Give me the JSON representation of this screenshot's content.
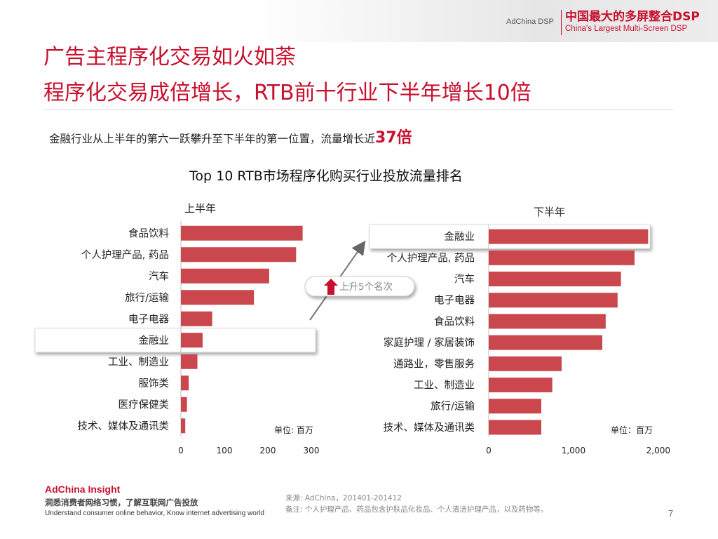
{
  "header": {
    "brand_small": "AdChina DSP",
    "brand_cn": "中国最大的多屏整合DSP",
    "brand_en": "China's Largest Multi-Screen DSP"
  },
  "title": {
    "line1": "广告主程序化交易如火如荼",
    "line2": "程序化交易成倍增长，RTB前十行业下半年增长10倍"
  },
  "subtitle": {
    "text": "金融行业从上半年的第六一跃攀升至下半年的第一位置，流量增长近",
    "highlight": "37倍"
  },
  "chart_data": {
    "title": "Top 10 RTB市场程序化购买行业投放流量排名",
    "colors": {
      "bar": "#c9474d",
      "accent": "#c8102e"
    },
    "callout": "上升5个名次",
    "charts": [
      {
        "type": "bar",
        "orientation": "horizontal",
        "panel_label": "上半年",
        "unit_label": "单位: 百万",
        "categories": [
          "食品饮料",
          "个人护理产品, 药品",
          "汽车",
          "旅行/运输",
          "电子电器",
          "金融业",
          "工业、制造业",
          "服饰类",
          "医疗保健类",
          "技术、媒体及通讯类"
        ],
        "values": [
          280,
          265,
          203,
          168,
          72,
          50,
          38,
          18,
          14,
          10
        ],
        "xlim": [
          0,
          300
        ],
        "ticks": [
          0,
          100,
          200,
          300
        ],
        "tick_labels": [
          "0",
          "100",
          "200",
          "300"
        ],
        "highlight_category": "金融业"
      },
      {
        "type": "bar",
        "orientation": "horizontal",
        "panel_label": "下半年",
        "unit_label": "单位：百万",
        "categories": [
          "金融业",
          "个人护理产品, 药品",
          "汽车",
          "电子电器",
          "食品饮料",
          "家庭护理 / 家居装饰",
          "通路业，零售服务",
          "工业、制造业",
          "旅行/运输",
          "技术、媒体及通讯类"
        ],
        "values": [
          1880,
          1720,
          1560,
          1520,
          1380,
          1340,
          860,
          750,
          620,
          620
        ],
        "xlim": [
          0,
          2200
        ],
        "ticks": [
          0,
          1000,
          2000
        ],
        "tick_labels": [
          "0",
          "1,000",
          "2,000"
        ],
        "highlight_category": "金融业"
      }
    ]
  },
  "footer": {
    "brand": "AdChina Insight",
    "slogan_cn": "洞悉消费者网络习惯，了解互联网广告投放",
    "slogan_en": "Understand consumer online behavior, Know internet advertising world",
    "source": "来源: AdChina，201401-201412",
    "note": "备注: 个人护理产品、药品包含护肤品化妆品、个人清洁护理产品，以及药物等。",
    "page_number": "7"
  }
}
